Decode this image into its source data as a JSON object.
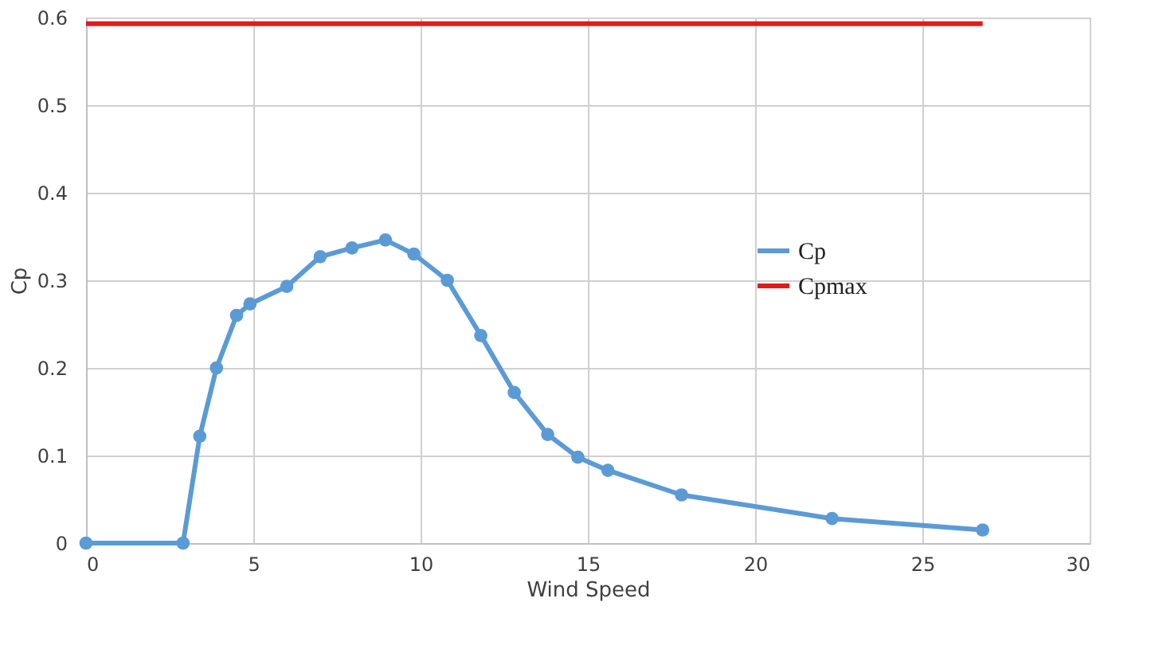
{
  "chart_data": {
    "type": "line",
    "xlabel": "Wind Speed",
    "ylabel": "Cp",
    "xlim": [
      0,
      30
    ],
    "xticks": [
      0,
      5,
      10,
      15,
      20,
      25,
      30
    ],
    "ylim": [
      0,
      0.6
    ],
    "yticks": [
      0,
      0.1,
      0.2,
      0.3,
      0.4,
      0.5,
      0.6
    ],
    "grid": true,
    "legend": "right",
    "line_style": "solid",
    "x": [
      0,
      2.9,
      3.4,
      3.9,
      4.5,
      4.9,
      6.0,
      7.0,
      7.95,
      8.95,
      9.8,
      10.8,
      11.8,
      12.8,
      13.8,
      14.7,
      15.6,
      17.8,
      22.3,
      26.8
    ],
    "series": [
      {
        "name": "Cp",
        "color": "#5b9bd5",
        "marker": "circle",
        "values": [
          0,
          0,
          0.122,
          0.2,
          0.26,
          0.273,
          0.293,
          0.327,
          0.337,
          0.346,
          0.33,
          0.3,
          0.237,
          0.172,
          0.124,
          0.098,
          0.083,
          0.055,
          0.028,
          0.015
        ]
      },
      {
        "name": "Cpmax",
        "color": "#e31a1c",
        "marker": "none",
        "values": [
          0.593,
          0.593,
          0.593,
          0.593,
          0.593,
          0.593,
          0.593,
          0.593,
          0.593,
          0.593,
          0.593,
          0.593,
          0.593,
          0.593,
          0.593,
          0.593,
          0.593,
          0.593,
          0.593,
          0.593
        ]
      }
    ]
  }
}
